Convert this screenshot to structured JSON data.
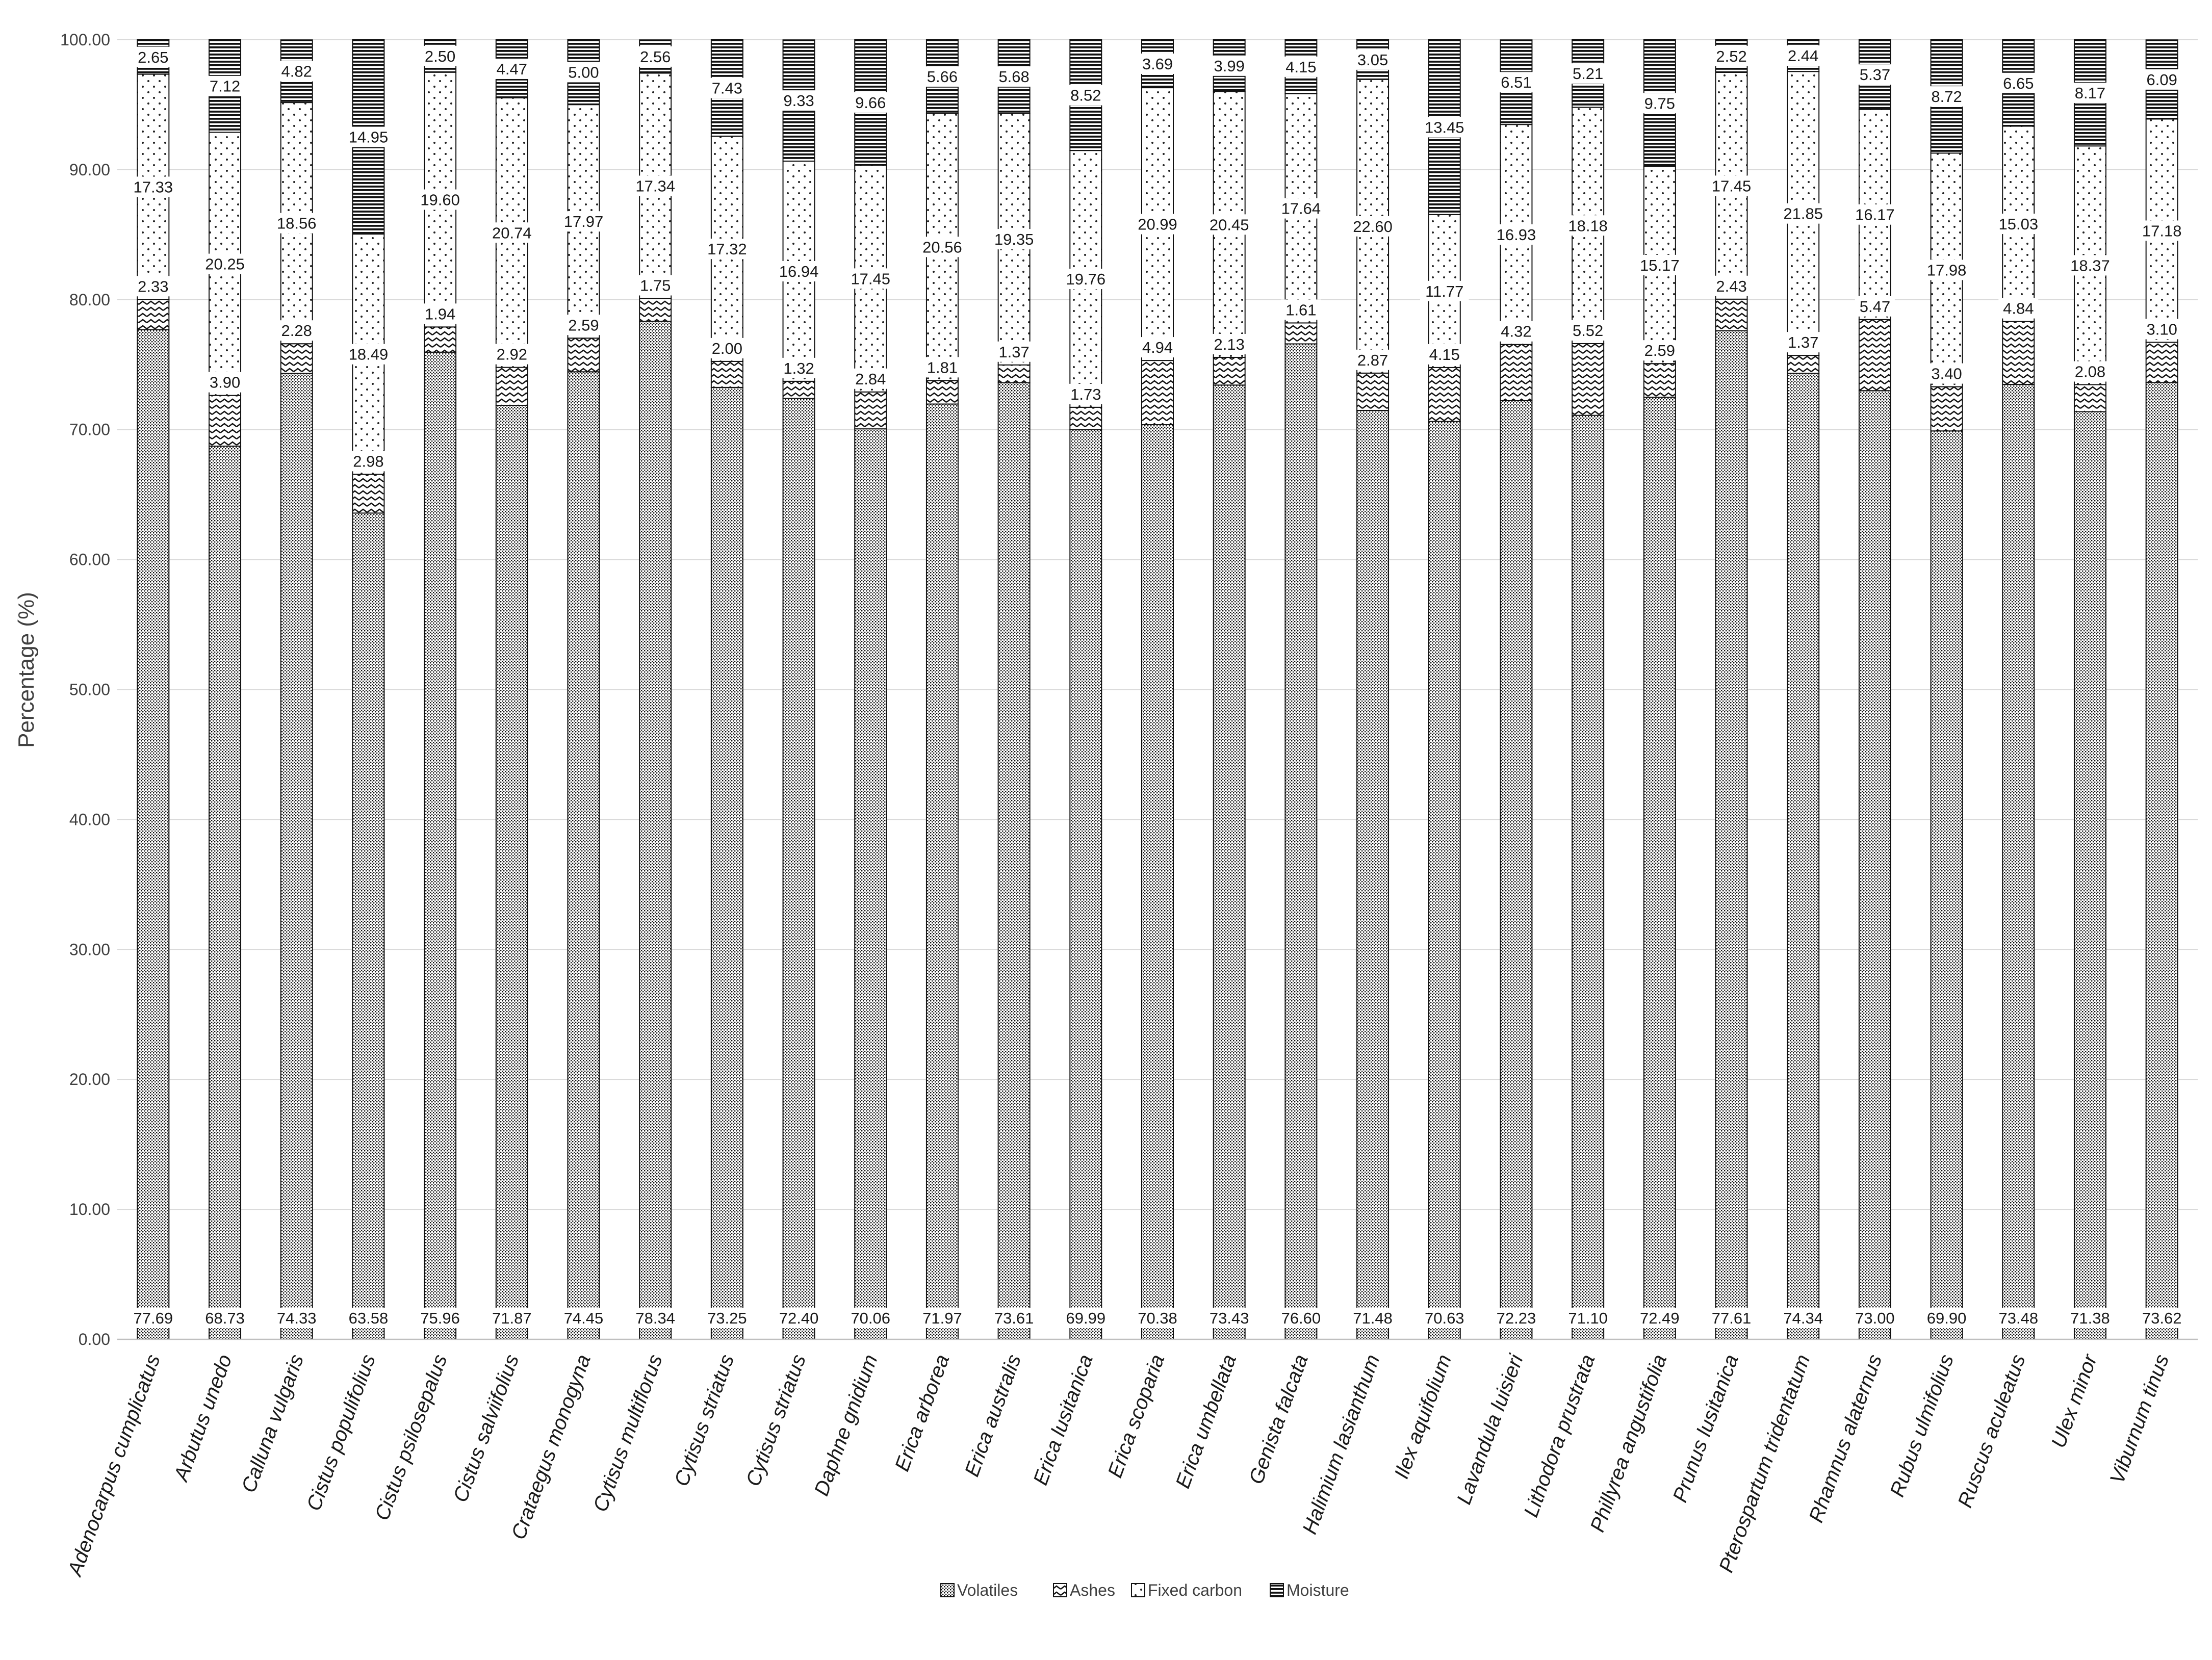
{
  "chart_data": {
    "type": "bar",
    "stacked": true,
    "title": "",
    "xlabel": "",
    "ylabel": "Percentage (%)",
    "ylim": [
      0,
      100
    ],
    "y_ticks": [
      "0.00",
      "10.00",
      "20.00",
      "30.00",
      "40.00",
      "50.00",
      "60.00",
      "70.00",
      "80.00",
      "90.00",
      "100.00"
    ],
    "grid": true,
    "legend_position": "bottom",
    "categories": [
      "Adenocarpus cumplicatus",
      "Arbutus unedo",
      "Calluna vulgaris",
      "Cistus populifolius",
      "Cistus psilosepalus",
      "Cistus salviifolius",
      "Crataegus monogyna",
      "Cytisus multiflorus",
      "Cytisus striatus",
      "Cytisus striatus",
      "Daphne gnidium",
      "Erica arborea",
      "Erica australis",
      "Erica lusitanica",
      "Erica scoparia",
      "Erica umbellata",
      "Genista falcata",
      "Halimium lasianthum",
      "Ilex aquifolium",
      "Lavandula luisieri",
      "Lithodora prustrata",
      "Phillyrea angustifolia",
      "Prunus lusitanica",
      "Pterospartum tridentatum",
      "Rhamnus alaternus",
      "Rubus ulmifolius",
      "Ruscus aculeatus",
      "Ulex minor",
      "Viburnum tinus"
    ],
    "series": [
      {
        "name": "Volatiles",
        "pattern": "dense-dots",
        "values": [
          77.69,
          68.73,
          74.33,
          63.58,
          75.96,
          71.87,
          74.45,
          78.34,
          73.25,
          72.4,
          70.06,
          71.97,
          73.61,
          69.99,
          70.38,
          73.43,
          76.6,
          71.48,
          70.63,
          72.23,
          71.1,
          72.49,
          77.61,
          74.34,
          73.0,
          69.9,
          73.48,
          71.38,
          73.62
        ]
      },
      {
        "name": "Ashes",
        "pattern": "zigzag",
        "values": [
          2.33,
          3.9,
          2.28,
          2.98,
          1.94,
          2.92,
          2.59,
          1.75,
          2.0,
          1.32,
          2.84,
          1.81,
          1.37,
          1.73,
          4.94,
          2.13,
          1.61,
          2.87,
          4.15,
          4.32,
          5.52,
          2.59,
          2.43,
          1.37,
          5.47,
          3.4,
          4.84,
          2.08,
          3.1
        ]
      },
      {
        "name": "Fixed carbon",
        "pattern": "sparse-dots",
        "values": [
          17.33,
          20.25,
          18.56,
          18.49,
          19.6,
          20.74,
          17.97,
          17.34,
          17.32,
          16.94,
          17.45,
          20.56,
          19.35,
          19.76,
          20.99,
          20.45,
          17.64,
          22.6,
          11.77,
          16.93,
          18.18,
          15.17,
          17.45,
          21.85,
          16.17,
          17.98,
          15.03,
          18.37,
          17.18
        ]
      },
      {
        "name": "Moisture",
        "pattern": "horizontal-lines",
        "values": [
          2.65,
          7.12,
          4.82,
          14.95,
          2.5,
          4.47,
          5.0,
          2.56,
          7.43,
          9.33,
          9.66,
          5.66,
          5.68,
          8.52,
          3.69,
          3.99,
          4.15,
          3.05,
          13.45,
          6.51,
          5.21,
          9.75,
          2.52,
          2.44,
          5.37,
          8.72,
          6.65,
          8.17,
          6.09
        ]
      }
    ]
  }
}
